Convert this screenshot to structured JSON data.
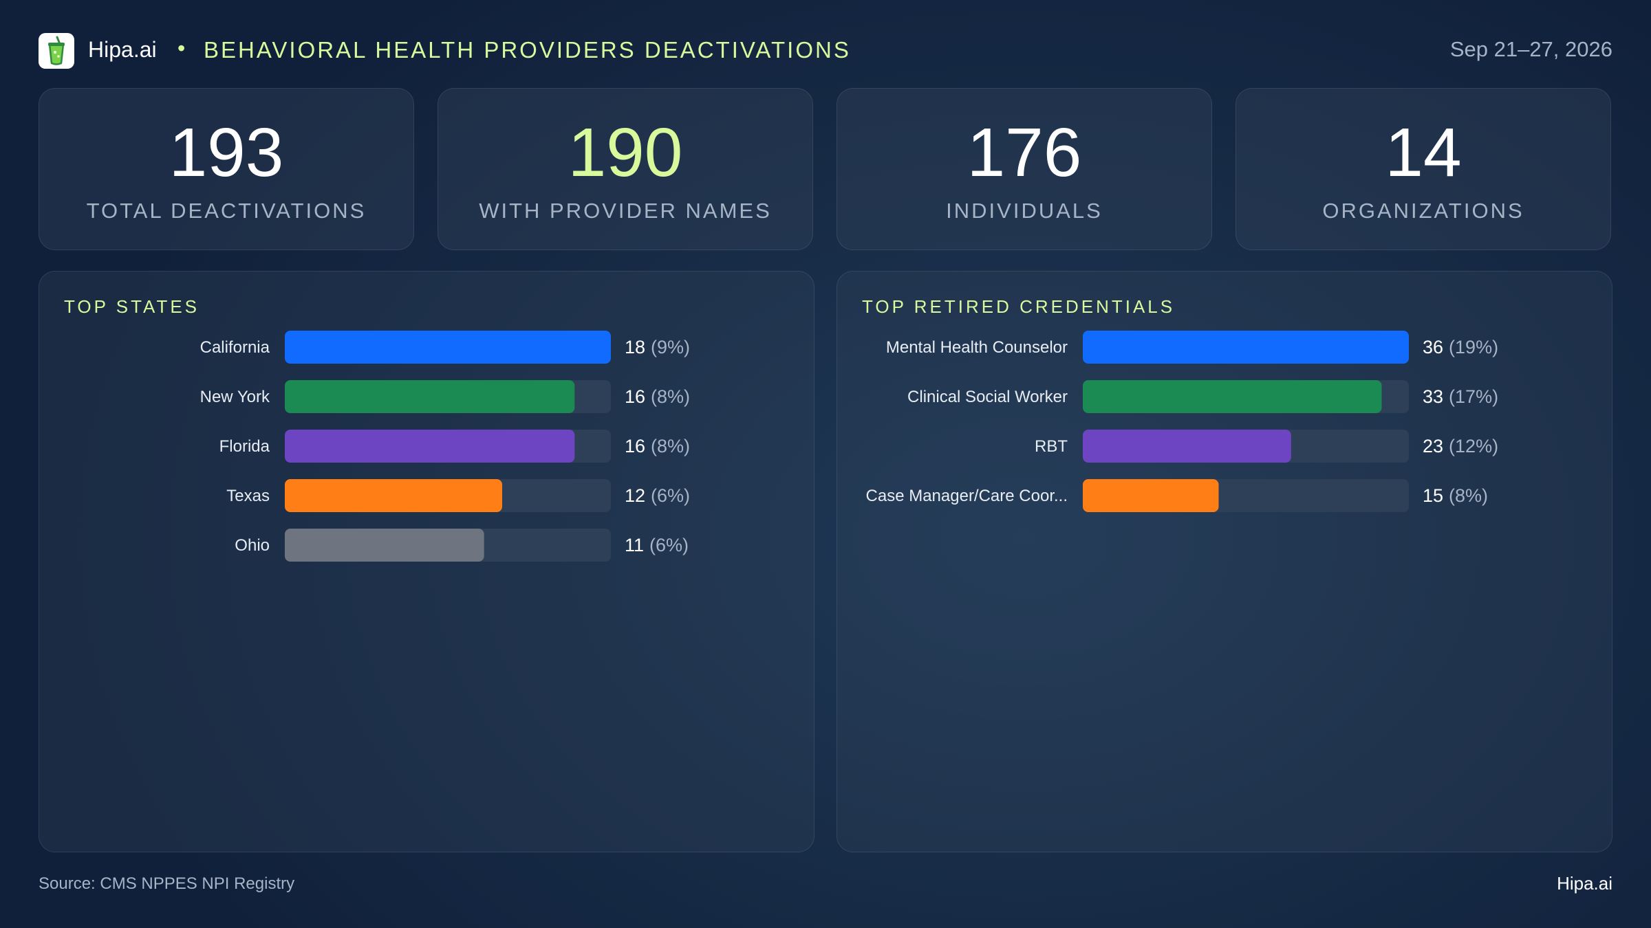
{
  "header": {
    "brand": "Hipa.ai",
    "separator": "•",
    "title": "BEHAVIORAL  HEALTH  PROVIDERS  DEACTIVATIONS",
    "date_range": "Sep 21–27, 2026"
  },
  "stats": [
    {
      "value": "193",
      "label": "TOTAL  DEACTIVATIONS"
    },
    {
      "value": "190",
      "label": "WITH PROVIDER NAMES"
    },
    {
      "value": "176",
      "label": "INDIVIDUALS"
    },
    {
      "value": "14",
      "label": "ORGANIZATIONS"
    }
  ],
  "chart_data": [
    {
      "type": "bar",
      "orientation": "horizontal",
      "title": "TOP STATES",
      "categories": [
        "California",
        "New York",
        "Florida",
        "Texas",
        "Ohio"
      ],
      "values": [
        18,
        16,
        16,
        12,
        11
      ],
      "percent_labels": [
        "(9%)",
        "(8%)",
        "(8%)",
        "(6%)",
        "(6%)"
      ],
      "colors": [
        "#126bff",
        "#1c8a53",
        "#6d44c2",
        "#ff7f16",
        "#6e7580"
      ],
      "xlim": [
        0,
        18
      ],
      "grid": false,
      "legend": "none"
    },
    {
      "type": "bar",
      "orientation": "horizontal",
      "title": "TOP RETIRED CREDENTIALS",
      "categories": [
        "Mental Health Counselor",
        "Clinical Social Worker",
        "RBT",
        "Case Manager/Care Coor..."
      ],
      "values": [
        36,
        33,
        23,
        15
      ],
      "percent_labels": [
        "(19%)",
        "(17%)",
        "(12%)",
        "(8%)"
      ],
      "colors": [
        "#126bff",
        "#1c8a53",
        "#6d44c2",
        "#ff7f16"
      ],
      "xlim": [
        0,
        36
      ],
      "grid": false,
      "legend": "none"
    }
  ],
  "footer": {
    "source": "Source: CMS NPPES NPI Registry",
    "brand": "Hipa.ai"
  },
  "icons": {
    "logo": "cup-with-straw-icon"
  }
}
